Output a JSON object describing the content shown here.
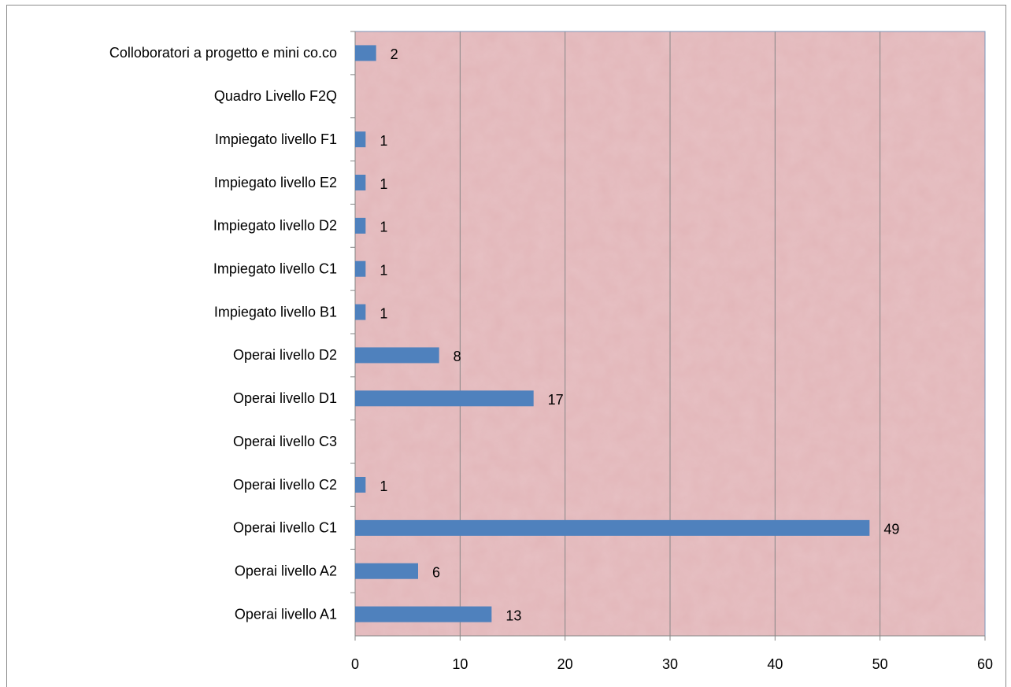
{
  "chart_data": {
    "type": "hbar",
    "categories": [
      "Colloboratori a progetto e mini co.co",
      "Quadro Livello F2Q",
      "Impiegato livello F1",
      "Impiegato livello E2",
      "Impiegato livello D2",
      "Impiegato livello C1",
      "Impiegato livello B1",
      "Operai livello D2",
      "Operai livello D1",
      "Operai livello C3",
      "Operai livello C2",
      "Operai livello C1",
      "Operai livello A2",
      "Operai livello A1"
    ],
    "values": [
      2,
      null,
      1,
      1,
      1,
      1,
      1,
      8,
      17,
      null,
      1,
      49,
      6,
      13
    ],
    "color": "#4f81bd",
    "xlim": [
      0,
      60
    ],
    "xticks": [
      0,
      10,
      20,
      30,
      40,
      50,
      60
    ],
    "grid": true
  }
}
